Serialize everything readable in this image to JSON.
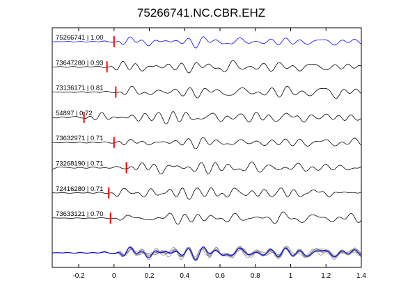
{
  "chart_data": {
    "type": "line",
    "title": "75266741.NC.CBR.EHZ",
    "xlabel": "",
    "ylabel": "",
    "xlim": [
      -0.35,
      1.4
    ],
    "xticks": [
      -0.2,
      0,
      0.2,
      0.4,
      0.6,
      0.8,
      1,
      1.2,
      1.4
    ],
    "xtick_labels": [
      "-0.2",
      "0",
      "0.2",
      "0.4",
      "0.6",
      "0.8",
      "1",
      "1.2",
      "1.4"
    ],
    "grid": false,
    "legend": "none",
    "colors": {
      "reference_trace": "#0000ff",
      "traces": "#000000",
      "pick_marker": "#ff0000",
      "overlay_traces": "#808080"
    },
    "traces": [
      {
        "label": "75266741 | 1.00",
        "event_id": "75266741",
        "correlation": 1.0,
        "pick_time": 0.0,
        "reference": true,
        "seed": 11
      },
      {
        "label": "73647280 | 0.93",
        "event_id": "73647280",
        "correlation": 0.93,
        "pick_time": -0.04,
        "reference": false,
        "seed": 23
      },
      {
        "label": "73136171 | 0.81",
        "event_id": "73136171",
        "correlation": 0.81,
        "pick_time": 0.01,
        "reference": false,
        "seed": 37
      },
      {
        "label": "54897 | 0.72",
        "event_id": "54897",
        "correlation": 0.72,
        "pick_time": -0.17,
        "reference": false,
        "seed": 41
      },
      {
        "label": "73632971 | 0.71",
        "event_id": "73632971",
        "correlation": 0.71,
        "pick_time": 0.0,
        "reference": false,
        "seed": 53
      },
      {
        "label": "73268190 | 0.71",
        "event_id": "73268190",
        "correlation": 0.71,
        "pick_time": 0.07,
        "reference": false,
        "seed": 67
      },
      {
        "label": "72416280 | 0.71",
        "event_id": "72416280",
        "correlation": 0.71,
        "pick_time": -0.03,
        "reference": false,
        "seed": 71
      },
      {
        "label": "73633121 | 0.70",
        "event_id": "73633121",
        "correlation": 0.7,
        "pick_time": -0.02,
        "reference": false,
        "seed": 83
      }
    ],
    "stack": {
      "description_visible": false,
      "traces": "overlay of all aligned traces, reference drawn in blue on top"
    }
  }
}
